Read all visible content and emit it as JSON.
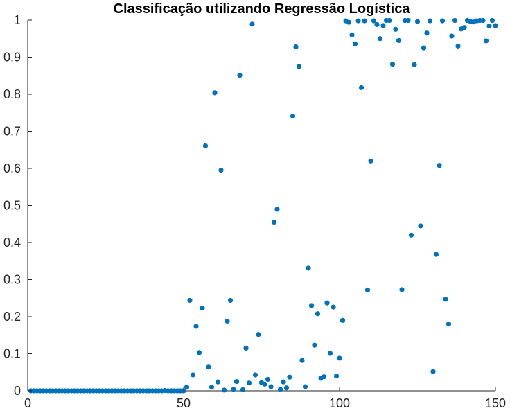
{
  "chart_data": {
    "type": "scatter",
    "title": "Classificação utilizando Regressão Logística",
    "xlabel": "",
    "ylabel": "",
    "xlim": [
      0,
      150
    ],
    "ylim": [
      0,
      1
    ],
    "xticks": [
      "0",
      "50",
      "100",
      "150"
    ],
    "yticks": [
      "0",
      "0.1",
      "0.2",
      "0.3",
      "0.4",
      "0.5",
      "0.6",
      "0.7",
      "0.8",
      "0.9",
      "1"
    ],
    "grid": false,
    "marker_color": "#0072BD",
    "series": [
      {
        "x": [
          1,
          2,
          3,
          4,
          5,
          6,
          7,
          8,
          9,
          10,
          11,
          12,
          13,
          14,
          15,
          16,
          17,
          18,
          19,
          20,
          21,
          22,
          23,
          24,
          25,
          26,
          27,
          28,
          29,
          30,
          31,
          32,
          33,
          34,
          35,
          36,
          37,
          38,
          39,
          40,
          41,
          42,
          43,
          44,
          45,
          46,
          47,
          48,
          49,
          50,
          51,
          52,
          53,
          54,
          55,
          56,
          57,
          58,
          59,
          60,
          61,
          62,
          63,
          64,
          65,
          66,
          67,
          68,
          69,
          70,
          71,
          72,
          73,
          74,
          75,
          76,
          77,
          78,
          79,
          80,
          81,
          82,
          83,
          84,
          85,
          86,
          87,
          88,
          89,
          90,
          91,
          92,
          93,
          94,
          95,
          96,
          97,
          98,
          99,
          100,
          101,
          102,
          103,
          104,
          105,
          106,
          107,
          108,
          109,
          110,
          111,
          112,
          113,
          114,
          115,
          116,
          117,
          118,
          119,
          120,
          121,
          122,
          123,
          124,
          125,
          126,
          127,
          128,
          129,
          130,
          131,
          132,
          133,
          134,
          135,
          136,
          137,
          138,
          139,
          140,
          141,
          142,
          143,
          144,
          145,
          146,
          147,
          148,
          149,
          150
        ],
        "y": [
          0,
          0,
          0,
          0,
          0,
          0,
          0,
          0,
          0,
          0,
          0,
          0,
          0,
          0,
          0,
          0,
          0,
          0,
          0,
          0,
          0,
          0,
          0,
          0,
          0,
          0,
          0,
          0,
          0,
          0,
          0,
          0,
          0,
          0,
          0,
          0,
          0,
          0,
          0,
          0,
          0,
          0,
          0,
          0.001,
          0,
          0,
          0,
          0,
          0,
          0,
          0.01,
          0.244,
          0.043,
          0.174,
          0.103,
          0.223,
          0.661,
          0.064,
          0.01,
          0.804,
          0.024,
          0.595,
          0.002,
          0.188,
          0.244,
          0.004,
          0.025,
          0.851,
          0.003,
          0.115,
          0.021,
          0.989,
          0.043,
          0.152,
          0.022,
          0.018,
          0.031,
          0.011,
          0.455,
          0.49,
          0.004,
          0.024,
          0.008,
          0.037,
          0.741,
          0.928,
          0.875,
          0.082,
          0.011,
          0.331,
          0.23,
          0.123,
          0.208,
          0.034,
          0.038,
          0.237,
          0.101,
          0.226,
          0.04,
          0.088,
          0.19,
          0.998,
          0.994,
          0.96,
          0.936,
          0.998,
          0.818,
          0.998,
          0.272,
          0.62,
          0.998,
          0.988,
          0.95,
          0.985,
          0.999,
          0.999,
          0.881,
          0.975,
          0.945,
          0.273,
          0.999,
          0.999,
          0.42,
          0.88,
          0.996,
          0.445,
          0.925,
          0.965,
          0.998,
          0.052,
          0.368,
          0.608,
          0.998,
          0.247,
          0.18,
          0.957,
          0.999,
          0.93,
          0.976,
          0.98,
          0.999,
          0.996,
          0.995,
          0.998,
          0.999,
          0.999,
          0.944,
          0.984,
          0.999,
          0.985
        ]
      }
    ]
  }
}
